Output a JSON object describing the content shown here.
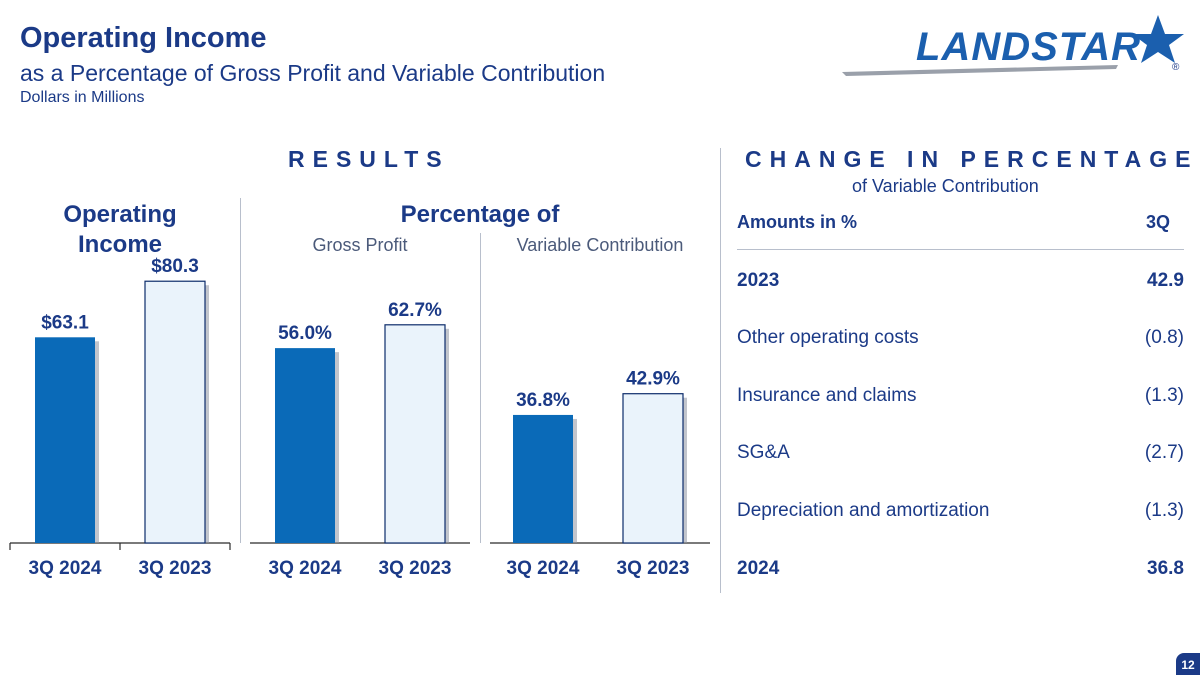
{
  "header": {
    "title": "Operating Income",
    "subtitle": "as a Percentage of Gross Profit and Variable Contribution",
    "units": "Dollars in Millions"
  },
  "logo": {
    "text": "LANDSTAR",
    "registered": "®"
  },
  "results": {
    "heading": "RESULTS",
    "operating_income_title_line1": "Operating",
    "operating_income_title_line2": "Income",
    "percentage_title": "Percentage of",
    "gross_profit_label": "Gross Profit",
    "variable_contribution_label": "Variable Contribution"
  },
  "chart_data": [
    {
      "type": "bar",
      "categories": [
        "3Q 2024",
        "3Q 2023"
      ],
      "values": [
        63.1,
        80.3
      ],
      "value_labels": [
        "$63.1",
        "$80.3"
      ],
      "title": "Operating Income",
      "ylim": [
        0,
        90
      ]
    },
    {
      "type": "bar",
      "categories": [
        "3Q 2024",
        "3Q 2023"
      ],
      "values": [
        56.0,
        62.7
      ],
      "value_labels": [
        "56.0%",
        "62.7%"
      ],
      "title": "Gross Profit",
      "ylim": [
        0,
        70
      ]
    },
    {
      "type": "bar",
      "categories": [
        "3Q 2024",
        "3Q 2023"
      ],
      "values": [
        36.8,
        42.9
      ],
      "value_labels": [
        "36.8%",
        "42.9%"
      ],
      "title": "Variable Contribution",
      "ylim": [
        0,
        70
      ]
    }
  ],
  "change": {
    "heading": "CHANGE IN PERCENTAGE",
    "subheading": "of Variable Contribution",
    "col_label": "Amounts in %",
    "col_period": "3Q",
    "rows": [
      {
        "label": "2023",
        "value": "42.9",
        "bold": true
      },
      {
        "label": "Other operating costs",
        "value": "(0.8)",
        "bold": false
      },
      {
        "label": "Insurance and claims",
        "value": "(1.3)",
        "bold": false
      },
      {
        "label": "SG&A",
        "value": "(2.7)",
        "bold": false
      },
      {
        "label": "Depreciation and amortization",
        "value": "(1.3)",
        "bold": false
      },
      {
        "label": "2024",
        "value": "36.8",
        "bold": true
      }
    ]
  },
  "page_number": "12",
  "colors": {
    "navy": "#1b3a87",
    "bar_current": "#0a6ab8",
    "bar_prior_fill": "#eaf3fb",
    "bar_prior_stroke": "#0c2c6b",
    "divider": "#b8bfcc"
  }
}
